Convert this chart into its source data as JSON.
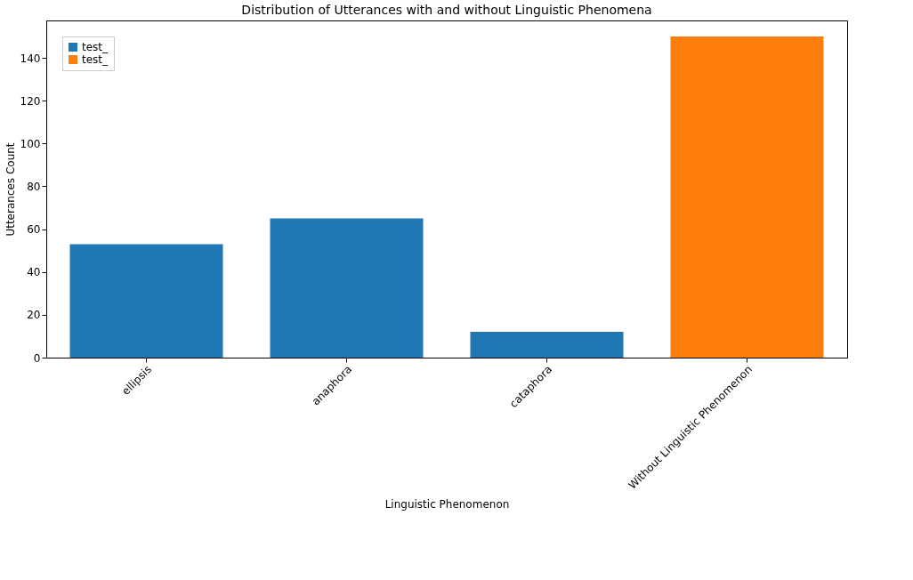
{
  "chart_data": {
    "type": "bar",
    "title": "Distribution of Utterances with and without Linguistic Phenomena",
    "xlabel": "Linguistic Phenomenon",
    "ylabel": "Utterances Count",
    "categories": [
      "ellipsis",
      "anaphora",
      "cataphora",
      "Without Linguistic Phenomenon"
    ],
    "series": [
      {
        "name": "test_",
        "color": "#1f77b4",
        "values": [
          53,
          65,
          12,
          null
        ]
      },
      {
        "name": "test_",
        "color": "#ff7f0e",
        "values": [
          null,
          null,
          null,
          150
        ]
      }
    ],
    "ylim": [
      0,
      157.5
    ],
    "yticks": [
      0,
      20,
      40,
      60,
      80,
      100,
      120,
      140
    ],
    "grid": false,
    "legend": "top left"
  }
}
